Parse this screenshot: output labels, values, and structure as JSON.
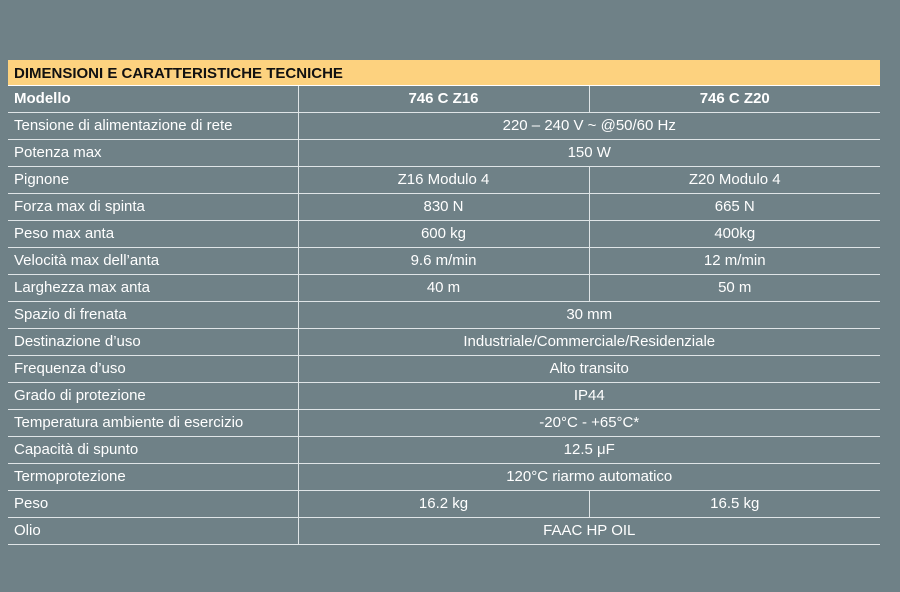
{
  "title": "DIMENSIONI E CARATTERISTICHE TECNICHE",
  "header": {
    "label": "Modello",
    "model_a": "746 C Z16",
    "model_b": "746 C Z20"
  },
  "rows": [
    {
      "label": "Tensione di alimentazione di rete",
      "value": "220 – 240 V ~ @50/60 Hz"
    },
    {
      "label": "Potenza max",
      "value": "150 W"
    },
    {
      "label": "Pignone",
      "a": "Z16 Modulo 4",
      "b": "Z20 Modulo 4"
    },
    {
      "label": "Forza max di spinta",
      "a": "830 N",
      "b": "665 N"
    },
    {
      "label": "Peso max anta",
      "a": "600 kg",
      "b": "400kg"
    },
    {
      "label": "Velocità max dell’anta",
      "a": "9.6 m/min",
      "b": "12 m/min"
    },
    {
      "label": "Larghezza max anta",
      "a": "40 m",
      "b": "50 m"
    },
    {
      "label": "Spazio di frenata",
      "value": "30 mm"
    },
    {
      "label": "Destinazione d’uso",
      "value": "Industriale/Commerciale/Residenziale"
    },
    {
      "label": "Frequenza d’uso",
      "value": "Alto transito"
    },
    {
      "label": "Grado di protezione",
      "value": "IP44"
    },
    {
      "label": "Temperatura ambiente di esercizio",
      "value": "-20°C - +65°C*"
    },
    {
      "label": "Capacità di spunto",
      "value": "12.5 μF"
    },
    {
      "label": "Termoprotezione",
      "value": "120°C riarmo automatico"
    },
    {
      "label": "Peso",
      "a": "16.2 kg",
      "b": "16.5 kg"
    },
    {
      "label": "Olio",
      "value": "FAAC HP OIL"
    }
  ],
  "colors": {
    "background": "#6f8187",
    "banner": "#fdd27f",
    "text": "#ffffff",
    "rule": "#dfe5e7"
  }
}
